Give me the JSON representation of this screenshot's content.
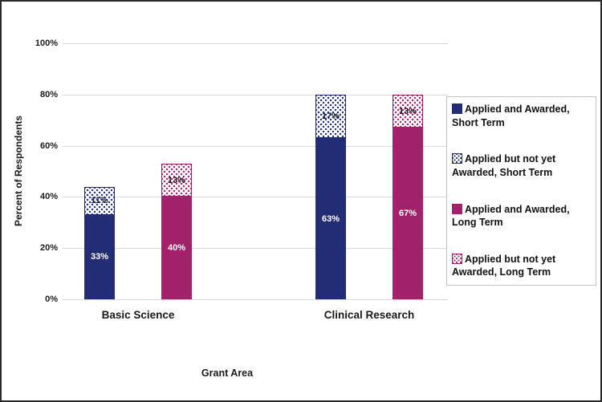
{
  "chart_data": {
    "type": "bar",
    "stacked": true,
    "xlabel": "Grant Area",
    "ylabel": "Percent of Respondents",
    "ylim": [
      0,
      100
    ],
    "ytick_step": 20,
    "ytick_labels": [
      "0%",
      "20%",
      "40%",
      "60%",
      "80%",
      "100%"
    ],
    "grid": true,
    "legend_position": "right",
    "categories": [
      "Basic Science",
      "Clinical Research"
    ],
    "series": [
      {
        "name": "Applied and Awarded, Short Term",
        "values": [
          33,
          63
        ],
        "style": "solid",
        "color": "#232d76",
        "label_color": "#ffffff"
      },
      {
        "name": "Applied but not yet Awarded, Short Term",
        "values": [
          11,
          17
        ],
        "style": "dotted",
        "color": "#232d76",
        "label_color": "#1b2145"
      },
      {
        "name": "Applied and Awarded, Long Term",
        "values": [
          40,
          67
        ],
        "style": "solid",
        "color": "#a2216b",
        "label_color": "#ffffff"
      },
      {
        "name": "Applied but not yet Awarded, Long Term",
        "values": [
          13,
          13
        ],
        "style": "dotted",
        "color": "#a2216b",
        "label_color": "#2e1024"
      }
    ],
    "stacks": [
      [
        0,
        1
      ],
      [
        2,
        3
      ]
    ],
    "bar_value_labels": {
      "Basic Science": [
        "33%",
        "11%",
        "40%",
        "13%"
      ],
      "Clinical Research": [
        "63%",
        "17%",
        "67%",
        "13%"
      ]
    }
  },
  "colors": {
    "grid": "#d9d9d9",
    "frame_border": "#2b2b2b",
    "legend_border": "#c3c3c3",
    "text": "#1a1a1a"
  }
}
